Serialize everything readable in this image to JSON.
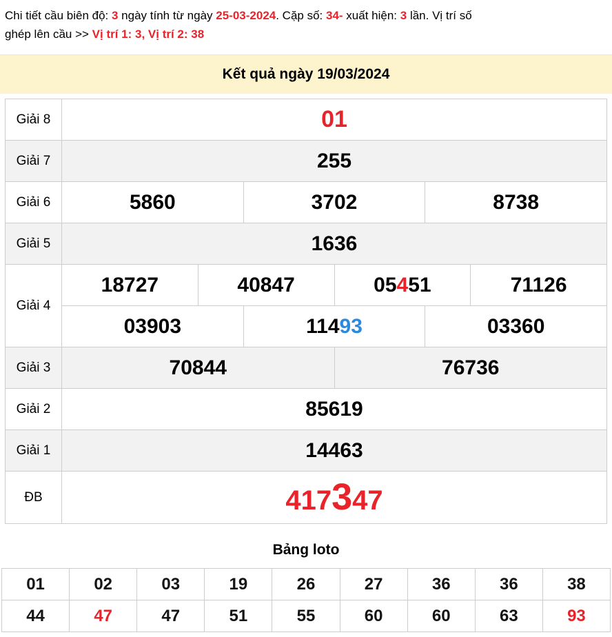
{
  "colors": {
    "red": "#e8232a",
    "blue": "#2b8ae0",
    "header_bg": "#fdf3cd",
    "stripe_bg": "#f2f2f2",
    "border": "#cccccc"
  },
  "header_note": {
    "lines": [
      [
        {
          "text": "Chi tiết cầu biên độ: "
        },
        {
          "text": "3",
          "color": "red"
        },
        {
          "text": " ngày tính từ ngày "
        },
        {
          "text": "25-03-2024",
          "color": "red"
        },
        {
          "text": ". Cặp số: "
        },
        {
          "text": "34-",
          "color": "red"
        },
        {
          "text": " xuất hiện: "
        },
        {
          "text": "3",
          "color": "red"
        },
        {
          "text": " lần. Vị trí số"
        }
      ],
      [
        {
          "text": "ghép lên cầu >> "
        },
        {
          "text": "Vị trí 1: 3, Vị trí 2: 38",
          "color": "red"
        }
      ]
    ]
  },
  "result_header": {
    "title": "Kết quả ngày 19/03/2024"
  },
  "results_table": {
    "rows": [
      {
        "label": "Giải 8",
        "striped": false,
        "variant": "g8",
        "lines": [
          [
            [
              {
                "text": "01",
                "color": "red"
              }
            ]
          ]
        ]
      },
      {
        "label": "Giải 7",
        "striped": true,
        "lines": [
          [
            [
              {
                "text": "255"
              }
            ]
          ]
        ]
      },
      {
        "label": "Giải 6",
        "striped": false,
        "lines": [
          [
            [
              {
                "text": "5860"
              }
            ],
            [
              {
                "text": "3702"
              }
            ],
            [
              {
                "text": "8738"
              }
            ]
          ]
        ]
      },
      {
        "label": "Giải 5",
        "striped": true,
        "lines": [
          [
            [
              {
                "text": "1636"
              }
            ]
          ]
        ]
      },
      {
        "label": "Giải 4",
        "striped": false,
        "lines": [
          [
            [
              {
                "text": "18727"
              }
            ],
            [
              {
                "text": "40847"
              }
            ],
            [
              {
                "text": "05"
              },
              {
                "text": "4",
                "color": "red"
              },
              {
                "text": "51"
              }
            ],
            [
              {
                "text": "71126"
              }
            ]
          ],
          [
            [
              {
                "text": "03903"
              }
            ],
            [
              {
                "text": "114"
              },
              {
                "text": "93",
                "color": "blue"
              }
            ],
            [
              {
                "text": "03360"
              }
            ]
          ]
        ]
      },
      {
        "label": "Giải 3",
        "striped": true,
        "lines": [
          [
            [
              {
                "text": "70844"
              }
            ],
            [
              {
                "text": "76736"
              }
            ]
          ]
        ]
      },
      {
        "label": "Giải 2",
        "striped": false,
        "lines": [
          [
            [
              {
                "text": "85619"
              }
            ]
          ]
        ]
      },
      {
        "label": "Giải 1",
        "striped": true,
        "lines": [
          [
            [
              {
                "text": "14463"
              }
            ]
          ]
        ]
      },
      {
        "label": "ĐB",
        "striped": false,
        "variant": "db",
        "lines": [
          [
            [
              {
                "text": "417",
                "color": "red"
              },
              {
                "text": "3",
                "color": "red",
                "large": true
              },
              {
                "text": "47",
                "color": "red"
              }
            ]
          ]
        ]
      }
    ]
  },
  "loto": {
    "title": "Bảng loto",
    "rows": [
      [
        {
          "text": "01"
        },
        {
          "text": "02"
        },
        {
          "text": "03"
        },
        {
          "text": "19"
        },
        {
          "text": "26"
        },
        {
          "text": "27"
        },
        {
          "text": "36"
        },
        {
          "text": "36"
        },
        {
          "text": "38"
        }
      ],
      [
        {
          "text": "44"
        },
        {
          "text": "47",
          "color": "red"
        },
        {
          "text": "47"
        },
        {
          "text": "51"
        },
        {
          "text": "55"
        },
        {
          "text": "60"
        },
        {
          "text": "60"
        },
        {
          "text": "63"
        },
        {
          "text": "93",
          "color": "red"
        }
      ]
    ]
  }
}
